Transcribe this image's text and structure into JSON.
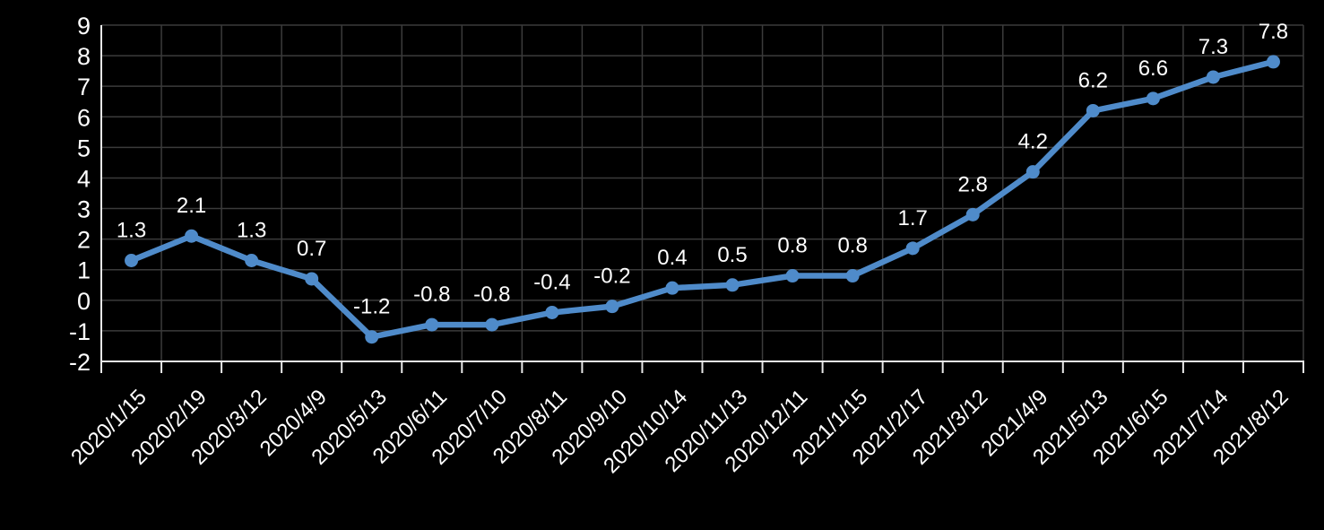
{
  "chart_data": {
    "type": "line",
    "title": "",
    "categories": [
      "2020/1/15",
      "2020/2/19",
      "2020/3/12",
      "2020/4/9",
      "2020/5/13",
      "2020/6/11",
      "2020/7/10",
      "2020/8/11",
      "2020/9/10",
      "2020/10/14",
      "2020/11/13",
      "2020/12/11",
      "2021/1/15",
      "2021/2/17",
      "2021/3/12",
      "2021/4/9",
      "2021/5/13",
      "2021/6/15",
      "2021/7/14",
      "2021/8/12"
    ],
    "series": [
      {
        "name": "value",
        "values": [
          1.3,
          2.1,
          1.3,
          0.7,
          -1.2,
          -0.8,
          -0.8,
          -0.4,
          -0.2,
          0.4,
          0.5,
          0.8,
          0.8,
          1.7,
          2.8,
          4.2,
          6.2,
          6.6,
          7.3,
          7.8
        ]
      }
    ],
    "point_labels": [
      "1.3",
      "2.1",
      "1.3",
      "0.7",
      "-1.2",
      "-0.8",
      "-0.8",
      "-0.4",
      "-0.2",
      "0.4",
      "0.5",
      "0.8",
      "0.8",
      "1.7",
      "2.8",
      "4.2",
      "6.2",
      "6.6",
      "7.3",
      "7.8"
    ],
    "y_ticks": [
      9,
      8,
      7,
      6,
      5,
      4,
      3,
      2,
      1,
      0,
      -1,
      -2
    ],
    "ylim": [
      -2,
      9
    ],
    "xlabel": "",
    "ylabel": "",
    "grid": true,
    "legend": "none",
    "marker": "circle",
    "x_label_rotation_deg": -45
  },
  "colors": {
    "background": "#000000",
    "series_line": "#4f8bca",
    "marker_fill": "#4f8bca",
    "gridline": "#3b3b3b",
    "axis_line": "#e8e8e8",
    "tick_mark": "#e8e8e8",
    "text": "#ffffff"
  }
}
